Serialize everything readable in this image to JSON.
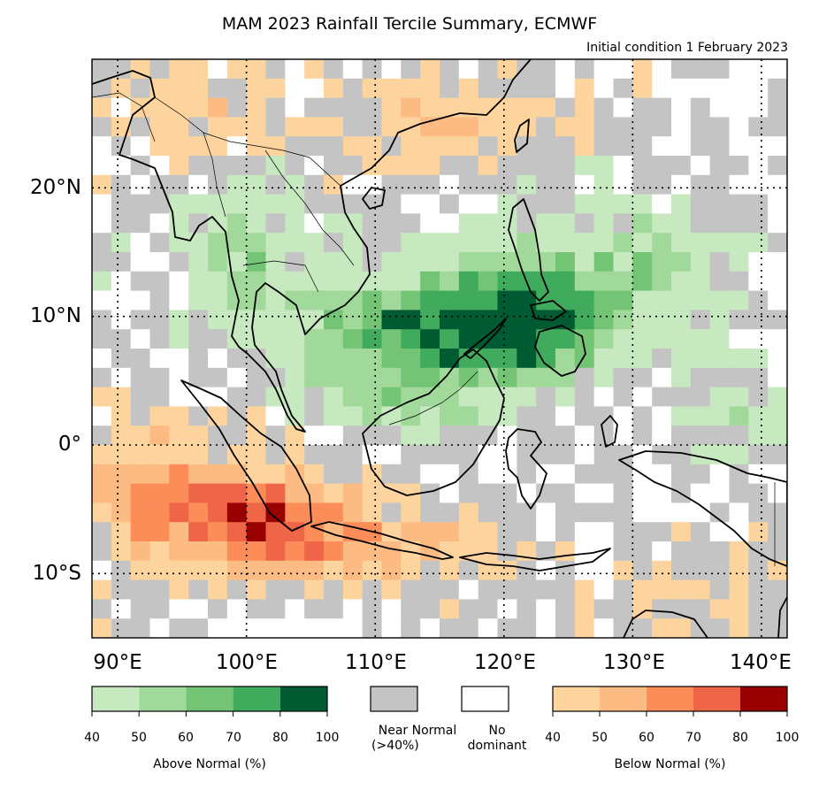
{
  "title": "MAM 2023 Rainfall Tercile Summary, ECMWF",
  "subtitle": "Initial condition 1 February 2023",
  "map": {
    "lon_range": [
      88,
      142
    ],
    "lat_range": [
      -15,
      30
    ],
    "lon_ticks": [
      {
        "value": 90,
        "label": "90°E"
      },
      {
        "value": 100,
        "label": "100°E"
      },
      {
        "value": 110,
        "label": "110°E"
      },
      {
        "value": 120,
        "label": "120°E"
      },
      {
        "value": 130,
        "label": "130°E"
      },
      {
        "value": 140,
        "label": "140°E"
      }
    ],
    "lat_ticks": [
      {
        "value": 20,
        "label": "20°N"
      },
      {
        "value": 10,
        "label": "10°N"
      },
      {
        "value": 0,
        "label": "0°"
      },
      {
        "value": -10,
        "label": "10°S"
      }
    ],
    "gridlines": "dotted",
    "coastlines": true,
    "country_borders": true
  },
  "colors": {
    "above": [
      "#c7e9c0",
      "#a1d99b",
      "#74c476",
      "#41ab5d",
      "#005a32"
    ],
    "below": [
      "#fdd49e",
      "#fdbb84",
      "#fc8d59",
      "#ef6548",
      "#990000"
    ],
    "near_normal": "#c4c4c4",
    "no_dominant": "#ffffff"
  },
  "legend": {
    "above": {
      "caption": "Above Normal (%)",
      "ticks": [
        "40",
        "50",
        "60",
        "70",
        "80",
        "100"
      ]
    },
    "near_normal": {
      "line1": "Near Normal",
      "line2": "(>40%)"
    },
    "no_dominant": {
      "line1": "No",
      "line2": "dominant"
    },
    "below": {
      "caption": "Below Normal (%)",
      "ticks": [
        "40",
        "50",
        "60",
        "70",
        "80",
        "100"
      ]
    }
  }
}
